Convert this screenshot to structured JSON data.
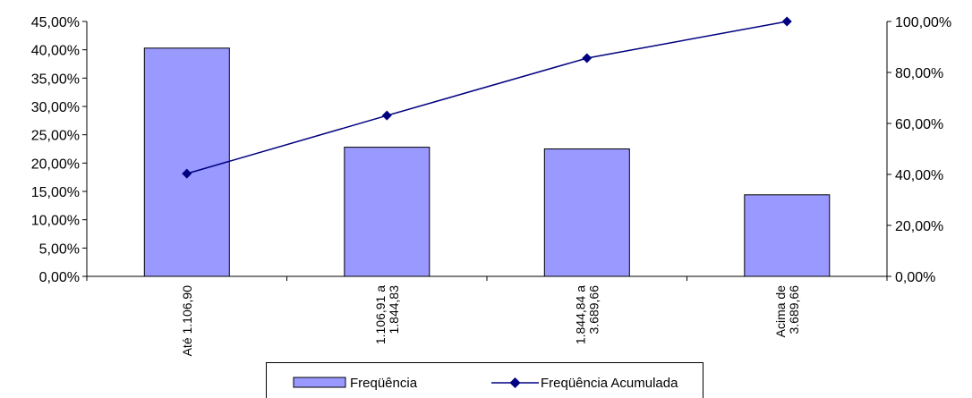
{
  "chart_data": {
    "type": "bar",
    "categories": [
      [
        "Até 1.106,90"
      ],
      [
        "1.106,91 a",
        "1.844,83"
      ],
      [
        "1.844,84 a",
        "3.689,66"
      ],
      [
        "Acima de",
        "3.689,66"
      ]
    ],
    "series": [
      {
        "name": "Freqüência",
        "type": "bar",
        "axis": "left",
        "values": [
          40.3,
          22.8,
          22.5,
          14.4
        ],
        "color": "#9999ff"
      },
      {
        "name": "Freqüência Acumulada",
        "type": "line",
        "axis": "right",
        "values": [
          40.3,
          63.1,
          85.6,
          100.0
        ],
        "color": "#000080"
      }
    ],
    "y_left": {
      "ylim": [
        0,
        45
      ],
      "ticks": [
        0,
        5,
        10,
        15,
        20,
        25,
        30,
        35,
        40,
        45
      ]
    },
    "y_right": {
      "ylim": [
        0,
        100
      ],
      "ticks": [
        0,
        20,
        40,
        60,
        80,
        100
      ]
    },
    "left_tick_labels": [
      "0,00%",
      "5,00%",
      "10,00%",
      "15,00%",
      "20,00%",
      "25,00%",
      "30,00%",
      "35,00%",
      "40,00%",
      "45,00%"
    ],
    "right_tick_labels": [
      "0,00%",
      "20,00%",
      "40,00%",
      "60,00%",
      "80,00%",
      "100,00%"
    ],
    "grid": false,
    "legend_position": "bottom"
  }
}
